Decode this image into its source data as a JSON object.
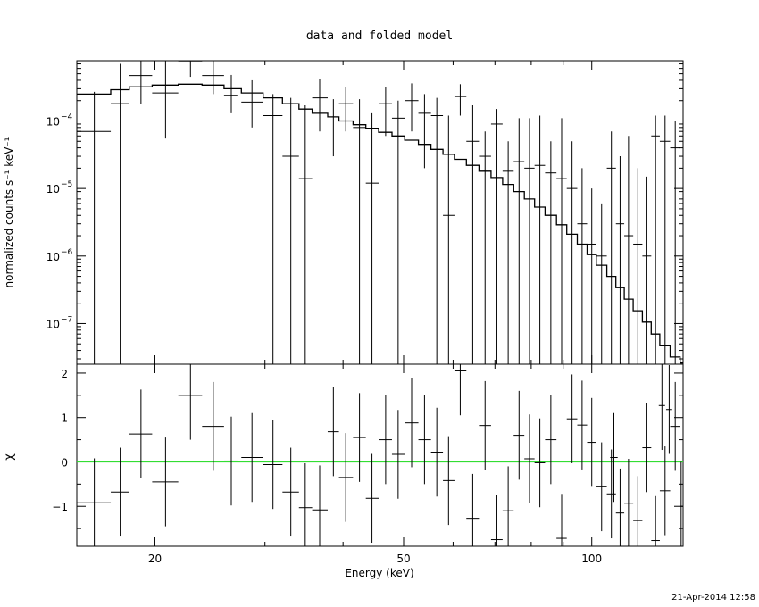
{
  "chart_data": [
    {
      "type": "scatter",
      "title": "data and folded model",
      "xlabel": "",
      "ylabel": "normalized counts s⁻¹ keV⁻¹",
      "xscale": "log",
      "yscale": "log",
      "xlim": [
        15,
        140
      ],
      "ylim": [
        2.5e-08,
        0.00078
      ],
      "yticks": [
        {
          "value": 1e-07,
          "base": "10",
          "exp": "−7"
        },
        {
          "value": 1e-06,
          "base": "10",
          "exp": "−6"
        },
        {
          "value": 1e-05,
          "base": "10",
          "exp": "−5"
        },
        {
          "value": 0.0001,
          "base": "10",
          "exp": "−4"
        }
      ],
      "grid": false,
      "series": [
        {
          "kind": "data",
          "color": "#000000",
          "points": [
            {
              "x": 16.0,
              "xlo": 15.0,
              "xhi": 17.0,
              "y": 7e-05,
              "ylo": 1e-09,
              "yhi": 0.00027
            },
            {
              "x": 17.6,
              "xlo": 17.0,
              "xhi": 18.2,
              "y": 0.00018,
              "ylo": 1e-09,
              "yhi": 0.0007
            },
            {
              "x": 19.0,
              "xlo": 18.2,
              "xhi": 19.8,
              "y": 0.00047,
              "ylo": 0.00018,
              "yhi": 0.0009
            },
            {
              "x": 20.8,
              "xlo": 19.8,
              "xhi": 21.8,
              "y": 0.00026,
              "ylo": 5.5e-05,
              "yhi": 0.0009
            },
            {
              "x": 22.8,
              "xlo": 21.8,
              "xhi": 23.8,
              "y": 0.00075,
              "ylo": 0.00045,
              "yhi": 0.0009
            },
            {
              "x": 24.8,
              "xlo": 23.8,
              "xhi": 25.8,
              "y": 0.00047,
              "ylo": 0.00025,
              "yhi": 0.0009
            },
            {
              "x": 26.5,
              "xlo": 25.8,
              "xhi": 27.1,
              "y": 0.00024,
              "ylo": 0.00013,
              "yhi": 0.00048
            },
            {
              "x": 28.6,
              "xlo": 27.5,
              "xhi": 29.8,
              "y": 0.00019,
              "ylo": 8e-05,
              "yhi": 0.0004
            },
            {
              "x": 30.9,
              "xlo": 29.8,
              "xhi": 32.0,
              "y": 0.00012,
              "ylo": 1e-09,
              "yhi": 0.00025
            },
            {
              "x": 33.0,
              "xlo": 32.0,
              "xhi": 34.0,
              "y": 3e-05,
              "ylo": 1e-09,
              "yhi": 0.00022
            },
            {
              "x": 34.8,
              "xlo": 34.0,
              "xhi": 35.7,
              "y": 1.4e-05,
              "ylo": 1e-09,
              "yhi": 0.00017
            },
            {
              "x": 36.7,
              "xlo": 35.7,
              "xhi": 37.8,
              "y": 0.00022,
              "ylo": 7e-05,
              "yhi": 0.00042
            },
            {
              "x": 38.6,
              "xlo": 37.8,
              "xhi": 39.4,
              "y": 0.0001,
              "ylo": 3e-05,
              "yhi": 0.00021
            },
            {
              "x": 40.4,
              "xlo": 39.4,
              "xhi": 41.5,
              "y": 0.00018,
              "ylo": 7e-05,
              "yhi": 0.00032
            },
            {
              "x": 42.5,
              "xlo": 41.5,
              "xhi": 43.5,
              "y": 8e-05,
              "ylo": 1e-09,
              "yhi": 0.00021
            },
            {
              "x": 44.5,
              "xlo": 43.5,
              "xhi": 45.6,
              "y": 1.2e-05,
              "ylo": 1e-09,
              "yhi": 0.00013
            },
            {
              "x": 46.8,
              "xlo": 45.6,
              "xhi": 47.9,
              "y": 0.00018,
              "ylo": 6e-05,
              "yhi": 0.00032
            },
            {
              "x": 49.0,
              "xlo": 47.9,
              "xhi": 50.2,
              "y": 0.00011,
              "ylo": 1e-09,
              "yhi": 0.0002
            },
            {
              "x": 51.5,
              "xlo": 50.2,
              "xhi": 52.8,
              "y": 0.0002,
              "ylo": 7e-05,
              "yhi": 0.00036
            },
            {
              "x": 54.0,
              "xlo": 52.8,
              "xhi": 55.3,
              "y": 0.00013,
              "ylo": 2e-05,
              "yhi": 0.00025
            },
            {
              "x": 56.5,
              "xlo": 55.3,
              "xhi": 57.8,
              "y": 0.00012,
              "ylo": 1e-09,
              "yhi": 0.00022
            },
            {
              "x": 59.0,
              "xlo": 57.8,
              "xhi": 60.3,
              "y": 4e-06,
              "ylo": 1e-09,
              "yhi": 0.00012
            },
            {
              "x": 61.6,
              "xlo": 60.3,
              "xhi": 63.0,
              "y": 0.00023,
              "ylo": 0.00012,
              "yhi": 0.00035
            },
            {
              "x": 64.5,
              "xlo": 63.0,
              "xhi": 66.0,
              "y": 5e-05,
              "ylo": 1e-09,
              "yhi": 0.00017
            },
            {
              "x": 67.5,
              "xlo": 66.0,
              "xhi": 69.0,
              "y": 3e-05,
              "ylo": 1e-09,
              "yhi": 7e-05
            },
            {
              "x": 70.5,
              "xlo": 69.0,
              "xhi": 72.0,
              "y": 9e-05,
              "ylo": 1e-09,
              "yhi": 0.00015
            },
            {
              "x": 73.5,
              "xlo": 72.0,
              "xhi": 75.0,
              "y": 1.8e-05,
              "ylo": 1e-09,
              "yhi": 5e-05
            },
            {
              "x": 76.5,
              "xlo": 75.0,
              "xhi": 78.0,
              "y": 2.5e-05,
              "ylo": 1e-09,
              "yhi": 0.00011
            },
            {
              "x": 79.5,
              "xlo": 78.0,
              "xhi": 81.0,
              "y": 2e-05,
              "ylo": 1e-09,
              "yhi": 0.00011
            },
            {
              "x": 82.6,
              "xlo": 81.0,
              "xhi": 84.2,
              "y": 2.2e-05,
              "ylo": 1e-09,
              "yhi": 0.00012
            },
            {
              "x": 86.0,
              "xlo": 84.2,
              "xhi": 87.8,
              "y": 1.7e-05,
              "ylo": 1e-09,
              "yhi": 5e-05
            },
            {
              "x": 89.5,
              "xlo": 87.8,
              "xhi": 91.2,
              "y": 1.4e-05,
              "ylo": 1e-09,
              "yhi": 0.00011
            },
            {
              "x": 93.0,
              "xlo": 91.2,
              "xhi": 94.8,
              "y": 1e-05,
              "ylo": 1e-09,
              "yhi": 5e-05
            },
            {
              "x": 96.5,
              "xlo": 94.8,
              "xhi": 98.3,
              "y": 3e-06,
              "ylo": 1e-09,
              "yhi": 2e-05
            },
            {
              "x": 100.0,
              "xlo": 98.3,
              "xhi": 101.7,
              "y": 1.5e-06,
              "ylo": 1e-09,
              "yhi": 1e-05
            },
            {
              "x": 103.7,
              "xlo": 101.7,
              "xhi": 105.7,
              "y": 1e-06,
              "ylo": 1e-09,
              "yhi": 6e-06
            },
            {
              "x": 107.5,
              "xlo": 105.7,
              "xhi": 109.3,
              "y": 2e-05,
              "ylo": 1e-09,
              "yhi": 7e-05
            },
            {
              "x": 111.0,
              "xlo": 109.3,
              "xhi": 112.7,
              "y": 3e-06,
              "ylo": 1e-09,
              "yhi": 3e-05
            },
            {
              "x": 114.5,
              "xlo": 112.7,
              "xhi": 116.5,
              "y": 2e-06,
              "ylo": 1e-09,
              "yhi": 6e-05
            },
            {
              "x": 118.5,
              "xlo": 116.5,
              "xhi": 120.5,
              "y": 1.5e-06,
              "ylo": 1e-09,
              "yhi": 2e-05
            },
            {
              "x": 122.5,
              "xlo": 120.5,
              "xhi": 124.5,
              "y": 1e-06,
              "ylo": 1e-09,
              "yhi": 1.5e-05
            },
            {
              "x": 126.5,
              "xlo": 124.5,
              "xhi": 128.5,
              "y": 6e-05,
              "ylo": 1e-09,
              "yhi": 0.00012
            },
            {
              "x": 131.0,
              "xlo": 128.5,
              "xhi": 133.5,
              "y": 5e-05,
              "ylo": 1e-09,
              "yhi": 0.00012
            },
            {
              "x": 136.0,
              "xlo": 133.5,
              "xhi": 138.5,
              "y": 4e-05,
              "ylo": 1e-09,
              "yhi": 0.0001
            }
          ]
        },
        {
          "kind": "model",
          "color": "#000000",
          "steps": [
            [
              15.0,
              0.00025
            ],
            [
              17.0,
              0.00029
            ],
            [
              18.2,
              0.00032
            ],
            [
              19.8,
              0.00034
            ],
            [
              21.8,
              0.00035
            ],
            [
              23.8,
              0.00034
            ],
            [
              25.8,
              0.0003
            ],
            [
              27.5,
              0.00026
            ],
            [
              29.8,
              0.00022
            ],
            [
              32.0,
              0.00018
            ],
            [
              34.0,
              0.00015
            ],
            [
              35.7,
              0.00013
            ],
            [
              37.8,
              0.000115
            ],
            [
              39.4,
              0.0001
            ],
            [
              41.5,
              8.8e-05
            ],
            [
              43.5,
              7.8e-05
            ],
            [
              45.6,
              6.8e-05
            ],
            [
              47.9,
              6e-05
            ],
            [
              50.2,
              5.2e-05
            ],
            [
              52.8,
              4.5e-05
            ],
            [
              55.3,
              3.8e-05
            ],
            [
              57.8,
              3.2e-05
            ],
            [
              60.3,
              2.7e-05
            ],
            [
              63.0,
              2.2e-05
            ],
            [
              66.0,
              1.8e-05
            ],
            [
              69.0,
              1.45e-05
            ],
            [
              72.0,
              1.15e-05
            ],
            [
              75.0,
              9e-06
            ],
            [
              78.0,
              7e-06
            ],
            [
              81.0,
              5.3e-06
            ],
            [
              84.2,
              4e-06
            ],
            [
              87.8,
              2.9e-06
            ],
            [
              91.2,
              2.1e-06
            ],
            [
              94.8,
              1.5e-06
            ],
            [
              98.3,
              1.05e-06
            ],
            [
              101.7,
              7.3e-07
            ],
            [
              105.7,
              5e-07
            ],
            [
              109.3,
              3.4e-07
            ],
            [
              112.7,
              2.3e-07
            ],
            [
              116.5,
              1.55e-07
            ],
            [
              120.5,
              1.05e-07
            ],
            [
              124.5,
              7e-08
            ],
            [
              128.5,
              4.7e-08
            ],
            [
              133.5,
              3.2e-08
            ],
            [
              138.5,
              2.6e-08
            ]
          ]
        }
      ]
    },
    {
      "type": "scatter",
      "title": "",
      "xlabel": "Energy (keV)",
      "ylabel": "χ",
      "xscale": "log",
      "xlim": [
        15,
        140
      ],
      "ylim": [
        -1.9,
        2.2
      ],
      "xticks": [
        {
          "value": 20,
          "label": "20"
        },
        {
          "value": 50,
          "label": "50"
        },
        {
          "value": 100,
          "label": "100"
        }
      ],
      "yticks": [
        {
          "value": -1,
          "label": "−1"
        },
        {
          "value": 0,
          "label": "0"
        },
        {
          "value": 1,
          "label": "1"
        },
        {
          "value": 2,
          "label": "2"
        }
      ],
      "reference_line": {
        "y": 0,
        "color": "#33dd33"
      },
      "series": [
        {
          "kind": "residuals",
          "color": "#000000",
          "points": [
            [
              16.0,
              15.0,
              17.0,
              -0.92
            ],
            [
              17.6,
              17.0,
              18.2,
              -0.68
            ],
            [
              19.0,
              18.2,
              19.8,
              0.63
            ],
            [
              20.8,
              19.8,
              21.8,
              -0.45
            ],
            [
              22.8,
              21.8,
              23.8,
              1.5
            ],
            [
              24.8,
              23.8,
              25.8,
              0.8
            ],
            [
              26.5,
              25.8,
              27.1,
              0.02
            ],
            [
              28.6,
              27.5,
              29.8,
              0.1
            ],
            [
              30.9,
              29.8,
              32.0,
              -0.06
            ],
            [
              33.0,
              32.0,
              34.0,
              -0.68
            ],
            [
              34.8,
              34.0,
              35.7,
              -1.03
            ],
            [
              36.7,
              35.7,
              37.8,
              -1.08
            ],
            [
              38.6,
              37.8,
              39.4,
              0.68
            ],
            [
              40.4,
              39.4,
              41.5,
              -0.35
            ],
            [
              42.5,
              41.5,
              43.5,
              0.55
            ],
            [
              44.5,
              43.5,
              45.6,
              -0.82
            ],
            [
              46.8,
              45.6,
              47.9,
              0.5
            ],
            [
              49.0,
              47.9,
              50.2,
              0.17
            ],
            [
              51.5,
              50.2,
              52.8,
              0.88
            ],
            [
              54.0,
              52.8,
              55.3,
              0.5
            ],
            [
              56.5,
              55.3,
              57.8,
              0.22
            ],
            [
              59.0,
              57.8,
              60.3,
              -0.42
            ],
            [
              61.6,
              60.3,
              63.0,
              2.05
            ],
            [
              64.5,
              63.0,
              66.0,
              -1.27
            ],
            [
              67.5,
              66.0,
              69.0,
              0.82
            ],
            [
              70.5,
              69.0,
              72.0,
              -1.75
            ],
            [
              73.5,
              72.0,
              75.0,
              -1.1
            ],
            [
              76.5,
              75.0,
              78.0,
              0.6
            ],
            [
              79.5,
              78.0,
              81.0,
              0.07
            ],
            [
              82.6,
              81.0,
              84.2,
              -0.02
            ],
            [
              86.0,
              84.2,
              87.8,
              0.5
            ],
            [
              89.5,
              87.8,
              91.2,
              -1.72
            ],
            [
              93.0,
              91.2,
              94.8,
              0.97
            ],
            [
              96.5,
              94.8,
              98.3,
              0.83
            ],
            [
              100.0,
              98.3,
              101.7,
              0.44
            ],
            [
              103.7,
              101.7,
              105.7,
              -0.56
            ],
            [
              107.5,
              105.7,
              109.3,
              -0.72
            ],
            [
              111.0,
              109.3,
              112.7,
              -1.15
            ],
            [
              114.5,
              112.7,
              116.5,
              -0.93
            ],
            [
              118.5,
              116.5,
              120.5,
              -1.32
            ],
            [
              122.5,
              120.5,
              124.5,
              0.32
            ],
            [
              126.5,
              124.5,
              128.5,
              -1.77
            ],
            [
              131.0,
              128.5,
              133.5,
              -0.65
            ],
            [
              136.0,
              133.5,
              138.5,
              0.8
            ],
            [
              139.0,
              138.5,
              140.0,
              -1.0
            ],
            [
              129.5,
              128.0,
              131.0,
              1.27
            ],
            [
              133.0,
              131.5,
              134.5,
              1.18
            ],
            [
              108.5,
              107.0,
              110.0,
              0.1
            ]
          ]
        }
      ]
    }
  ],
  "timestamp": "21-Apr-2014 12:58"
}
